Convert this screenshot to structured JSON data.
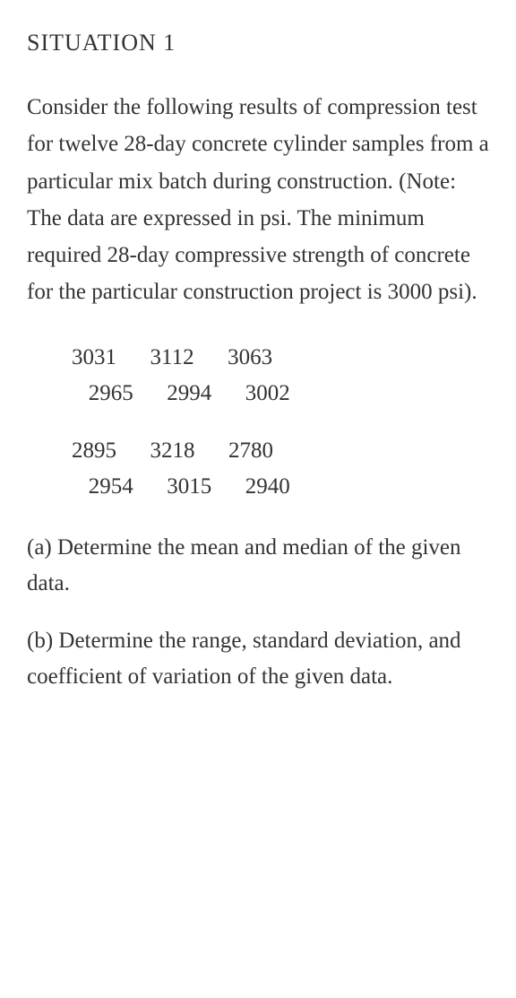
{
  "heading": "SITUATION 1",
  "intro": "Consider the following results of compression test for twelve 28-day concrete cylinder samples from a particular mix batch during construction. (Note: The data are expressed in psi. The minimum required 28-day compressive strength of concrete for the particular construction project is 3000 psi).",
  "data": {
    "group1_row1": "3031      3112      3063",
    "group1_row2": "   2965      2994      3002",
    "group2_row1": "2895      3218      2780",
    "group2_row2": "   2954      3015      2940",
    "values": [
      3031,
      3112,
      3063,
      2965,
      2994,
      3002,
      2895,
      3218,
      2780,
      2954,
      3015,
      2940
    ]
  },
  "question_a": "(a) Determine the mean and median of the given data.",
  "question_b": "(b) Determine the range, standard deviation, and coefficient of variation of the given data.",
  "styling": {
    "background_color": "#ffffff",
    "text_color": "#333333",
    "font_family": "Georgia, serif",
    "heading_fontsize": 26,
    "body_fontsize": 25,
    "line_height": 1.65
  }
}
